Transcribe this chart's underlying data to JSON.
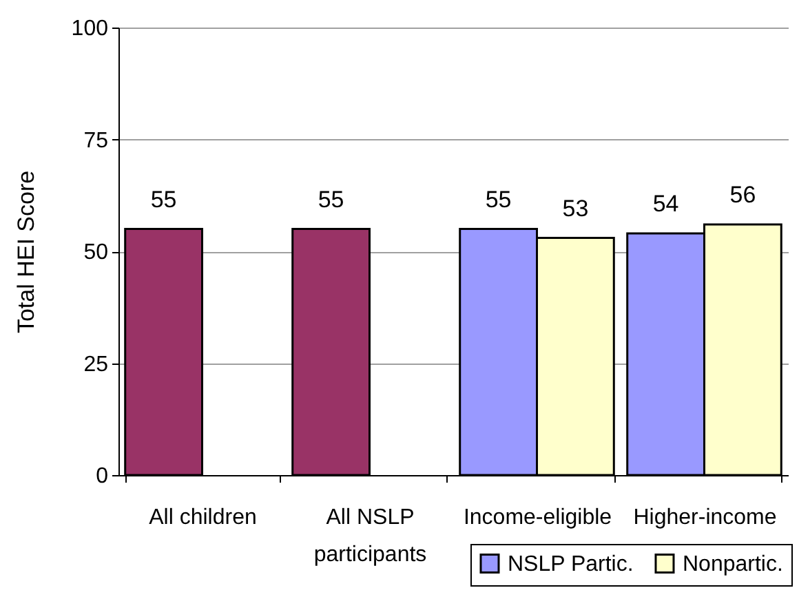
{
  "chart_data": {
    "type": "bar",
    "ylabel": "Total HEI Score",
    "categories": [
      "All children",
      "All NSLP participants",
      "Income-eligible",
      "Higher-income"
    ],
    "series": [
      {
        "color": "#993366",
        "values": [
          55,
          55,
          null,
          null
        ]
      },
      {
        "name": "NSLP Partic.",
        "color": "#9999ff",
        "values": [
          null,
          null,
          55,
          54
        ]
      },
      {
        "name": "Nonpartic.",
        "color": "#ffffcc",
        "values": [
          null,
          null,
          53,
          56
        ]
      }
    ],
    "ylim": [
      0,
      100
    ],
    "yticks": [
      0,
      25,
      50,
      75,
      100
    ],
    "grid": "y",
    "legend": "bottom right",
    "data_labels": true
  }
}
